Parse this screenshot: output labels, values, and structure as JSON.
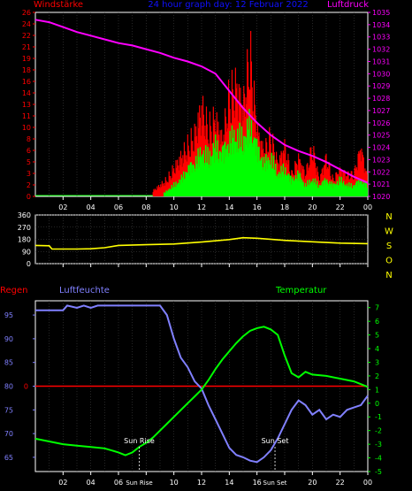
{
  "header": {
    "left_label": "Windstärke",
    "title": "24 hour graph day: 12 Februar 2022",
    "right_label": "Luftdruck"
  },
  "colors": {
    "background": "#000000",
    "frame": "#ffffff",
    "wind_gust": "#ff0000",
    "wind_avg": "#00ff00",
    "pressure": "#ff00ff",
    "direction": "#ffff00",
    "humidity": "#8080ff",
    "temperature": "#00ff00",
    "rain": "#ff0000",
    "grid": "#4d4d4d",
    "sun_marker": "#ffffff"
  },
  "x_ticks": [
    "02",
    "04",
    "06",
    "08",
    "10",
    "12",
    "14",
    "16",
    "18",
    "20",
    "22",
    "00"
  ],
  "chart_data": [
    {
      "type": "bar",
      "name": "wind-pressure",
      "x_range_hours": [
        0,
        24
      ],
      "ylabel_left": "Windstärke",
      "ylabel_right": "Luftdruck",
      "ylim_left": [
        0,
        26
      ],
      "yticks_left": [
        "0",
        "2",
        "3",
        "5",
        "6",
        "8",
        "10",
        "11",
        "13",
        "14",
        "16",
        "18",
        "19",
        "21",
        "22",
        "24",
        "26"
      ],
      "ylim_right": [
        1020,
        1035
      ],
      "yticks_right": [
        "1020",
        "1021",
        "1022",
        "1023",
        "1024",
        "1025",
        "1026",
        "1027",
        "1028",
        "1029",
        "1030",
        "1031",
        "1032",
        "1033",
        "1034",
        "1035"
      ],
      "wind_gust": {
        "x": [
          0,
          8,
          8.5,
          9,
          9.5,
          10,
          10.5,
          11,
          11.5,
          12,
          12.5,
          13,
          13.5,
          14,
          14.5,
          15,
          15.5,
          16,
          16.5,
          17,
          17.5,
          18,
          18.5,
          19,
          19.5,
          20,
          20.5,
          21,
          21.5,
          22,
          22.5,
          23,
          23.5,
          24
        ],
        "y": [
          0,
          0,
          1,
          2,
          3,
          5,
          7,
          9,
          11,
          16,
          12,
          14,
          10,
          18,
          20,
          16,
          26,
          12,
          8,
          11,
          6,
          9,
          4,
          7,
          4,
          9,
          3,
          7,
          3,
          5,
          4,
          4,
          9,
          3
        ]
      },
      "wind_avg": {
        "x": [
          0,
          8,
          8.5,
          9,
          9.5,
          10,
          10.5,
          11,
          11.5,
          12,
          12.5,
          13,
          13.5,
          14,
          14.5,
          15,
          15.5,
          16,
          16.5,
          17,
          17.5,
          18,
          18.5,
          19,
          19.5,
          20,
          20.5,
          21,
          21.5,
          22,
          22.5,
          23,
          23.5,
          24
        ],
        "y": [
          0,
          0,
          0,
          0,
          1,
          2,
          3,
          5,
          6,
          8,
          7,
          9,
          8,
          10,
          11,
          10,
          13,
          9,
          6,
          7,
          4,
          5,
          3,
          4,
          2,
          3,
          2,
          3,
          2,
          3,
          2,
          2,
          3,
          2
        ]
      },
      "pressure": {
        "x": [
          0,
          1,
          2,
          3,
          4,
          5,
          6,
          7,
          8,
          9,
          10,
          11,
          12,
          13,
          14,
          15,
          16,
          17,
          18,
          19,
          20,
          21,
          22,
          23,
          24
        ],
        "y": [
          1034.4,
          1034.2,
          1033.8,
          1033.4,
          1033.1,
          1032.8,
          1032.5,
          1032.3,
          1032.0,
          1031.7,
          1031.3,
          1031.0,
          1030.6,
          1030.0,
          1028.6,
          1027.2,
          1026.0,
          1025.0,
          1024.2,
          1023.7,
          1023.3,
          1022.8,
          1022.2,
          1021.6,
          1021.1
        ]
      }
    },
    {
      "type": "line",
      "name": "wind-direction",
      "x_range_hours": [
        0,
        24
      ],
      "ylim": [
        0,
        360
      ],
      "yticks": [
        "0",
        "90",
        "180",
        "270",
        "360"
      ],
      "compass_labels": [
        "N",
        "W",
        "S",
        "O",
        "N"
      ],
      "series": [
        {
          "x": [
            0,
            1,
            1.2,
            3,
            4,
            5,
            6,
            8,
            10,
            12,
            14,
            15,
            16,
            18,
            20,
            22,
            24
          ],
          "y": [
            135,
            132,
            108,
            108,
            110,
            118,
            135,
            140,
            145,
            160,
            178,
            192,
            188,
            172,
            162,
            152,
            148
          ]
        }
      ]
    },
    {
      "type": "line",
      "name": "humidity-temperature",
      "x_range_hours": [
        0,
        24
      ],
      "left_label": "Regen",
      "humidity_label": "Luftfeuchte",
      "temperature_label": "Temperatur",
      "ylim_left": [
        62,
        98
      ],
      "yticks_left": [
        "65",
        "70",
        "75",
        "80",
        "85",
        "90",
        "95"
      ],
      "ylim_right": [
        -5,
        7.5
      ],
      "yticks_right": [
        "-5",
        "-4",
        "-3",
        "-2",
        "-1",
        "0",
        "1",
        "2",
        "3",
        "4",
        "5",
        "6",
        "7"
      ],
      "annotations": [
        {
          "label": "Sun Rise",
          "hour": 7.5
        },
        {
          "label": "Sun Set",
          "hour": 17.3
        }
      ],
      "bottom_tick_override": [
        {
          "label": "Sun Rise",
          "hour": 7.5
        },
        {
          "label": "Sun Set",
          "hour": 17.3
        }
      ],
      "rain": {
        "y": 80
      },
      "humidity": {
        "x": [
          0,
          1,
          2,
          2.3,
          3,
          3.5,
          4,
          4.5,
          5,
          6,
          7,
          8,
          9,
          9.5,
          10,
          10.5,
          11,
          11.5,
          12,
          12.5,
          13,
          13.5,
          14,
          14.5,
          15,
          15.5,
          16,
          16.5,
          17,
          17.5,
          18,
          18.5,
          19,
          19.5,
          20,
          20.5,
          21,
          21.5,
          22,
          22.5,
          23,
          23.5,
          24
        ],
        "y": [
          96,
          96,
          96,
          97,
          96.5,
          97,
          96.5,
          97,
          97,
          97,
          97,
          97,
          97,
          95,
          90,
          86,
          84,
          81,
          79.5,
          76,
          73,
          70,
          67,
          65.5,
          65,
          64.3,
          64,
          65,
          66.5,
          69,
          72,
          75,
          77,
          76,
          74,
          75,
          73,
          74,
          73.5,
          75,
          75.5,
          76,
          78
        ]
      },
      "temperature": {
        "x": [
          0,
          1,
          2,
          3,
          4,
          5,
          6,
          6.5,
          7,
          7.5,
          8,
          8.5,
          9,
          9.5,
          10,
          10.5,
          11,
          11.5,
          12,
          12.5,
          13,
          13.5,
          14,
          14.5,
          15,
          15.5,
          16,
          16.5,
          17,
          17.5,
          18,
          18.5,
          19,
          19.5,
          20,
          21,
          22,
          23,
          24
        ],
        "y": [
          -2.6,
          -2.8,
          -3.0,
          -3.1,
          -3.2,
          -3.3,
          -3.6,
          -3.8,
          -3.6,
          -3.2,
          -2.9,
          -2.5,
          -2.0,
          -1.5,
          -1.0,
          -0.5,
          0.0,
          0.5,
          1.0,
          1.7,
          2.5,
          3.2,
          3.8,
          4.4,
          4.9,
          5.3,
          5.5,
          5.6,
          5.4,
          5.0,
          3.5,
          2.2,
          1.9,
          2.3,
          2.1,
          2.0,
          1.8,
          1.6,
          1.2
        ]
      }
    }
  ]
}
